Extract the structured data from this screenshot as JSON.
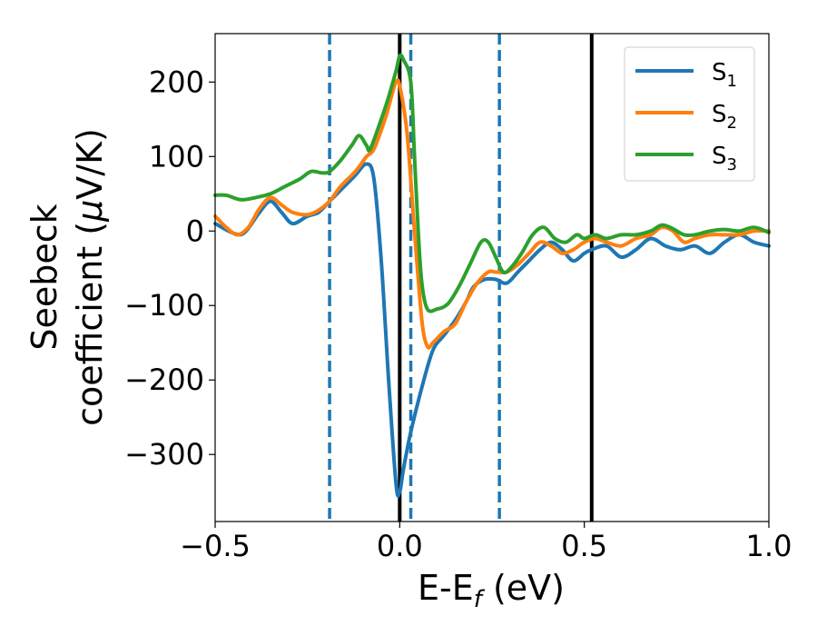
{
  "chart_data": {
    "type": "line",
    "title": "",
    "xlabel": {
      "main": "E-E",
      "sub": "f",
      "unit": " (eV)"
    },
    "ylabel": {
      "line1": "Seebeck",
      "line2_prefix": "coefficient  (",
      "mu": "μ",
      "line2_suffix": "V/K)"
    },
    "xlim": [
      -0.5,
      1.0
    ],
    "ylim": [
      -390,
      265
    ],
    "xticks": [
      -0.5,
      0.0,
      0.5,
      1.0
    ],
    "xtick_labels": [
      "−0.5",
      "0.0",
      "0.5",
      "1.0"
    ],
    "yticks": [
      -300,
      -200,
      -100,
      0,
      100,
      200
    ],
    "ytick_labels": [
      "−300",
      "−200",
      "−100",
      "0",
      "100",
      "200"
    ],
    "grid": false,
    "legend_position": "top-right",
    "vertical_lines": [
      {
        "x": -0.19,
        "style": "dashed",
        "color": "#1f77b4"
      },
      {
        "x": 0.03,
        "style": "dashed",
        "color": "#1f77b4"
      },
      {
        "x": 0.27,
        "style": "dashed",
        "color": "#1f77b4"
      },
      {
        "x": 0.0,
        "style": "solid",
        "color": "#000000"
      },
      {
        "x": 0.52,
        "style": "solid",
        "color": "#000000"
      }
    ],
    "series": [
      {
        "name": "S",
        "sub": "1",
        "color": "#1f77b4",
        "points": [
          [
            -0.5,
            10
          ],
          [
            -0.45,
            -3
          ],
          [
            -0.42,
            -2
          ],
          [
            -0.38,
            25
          ],
          [
            -0.35,
            40
          ],
          [
            -0.32,
            25
          ],
          [
            -0.29,
            10
          ],
          [
            -0.25,
            20
          ],
          [
            -0.22,
            25
          ],
          [
            -0.19,
            40
          ],
          [
            -0.15,
            60
          ],
          [
            -0.12,
            75
          ],
          [
            -0.09,
            90
          ],
          [
            -0.07,
            70
          ],
          [
            -0.05,
            -40
          ],
          [
            -0.03,
            -200
          ],
          [
            -0.01,
            -340
          ],
          [
            0.0,
            -350
          ],
          [
            0.01,
            -320
          ],
          [
            0.03,
            -270
          ],
          [
            0.06,
            -210
          ],
          [
            0.09,
            -160
          ],
          [
            0.12,
            -140
          ],
          [
            0.15,
            -120
          ],
          [
            0.18,
            -95
          ],
          [
            0.2,
            -75
          ],
          [
            0.23,
            -65
          ],
          [
            0.26,
            -65
          ],
          [
            0.29,
            -70
          ],
          [
            0.32,
            -55
          ],
          [
            0.35,
            -40
          ],
          [
            0.38,
            -25
          ],
          [
            0.41,
            -15
          ],
          [
            0.44,
            -25
          ],
          [
            0.47,
            -40
          ],
          [
            0.5,
            -30
          ],
          [
            0.52,
            -25
          ],
          [
            0.56,
            -20
          ],
          [
            0.6,
            -35
          ],
          [
            0.64,
            -25
          ],
          [
            0.68,
            -10
          ],
          [
            0.72,
            -20
          ],
          [
            0.76,
            -25
          ],
          [
            0.8,
            -20
          ],
          [
            0.84,
            -30
          ],
          [
            0.88,
            -15
          ],
          [
            0.92,
            -5
          ],
          [
            0.96,
            -15
          ],
          [
            1.0,
            -20
          ]
        ]
      },
      {
        "name": "S",
        "sub": "2",
        "color": "#ff7f0e",
        "points": [
          [
            -0.5,
            20
          ],
          [
            -0.47,
            5
          ],
          [
            -0.44,
            -5
          ],
          [
            -0.41,
            5
          ],
          [
            -0.38,
            30
          ],
          [
            -0.35,
            45
          ],
          [
            -0.32,
            35
          ],
          [
            -0.29,
            25
          ],
          [
            -0.25,
            22
          ],
          [
            -0.22,
            28
          ],
          [
            -0.19,
            40
          ],
          [
            -0.16,
            60
          ],
          [
            -0.12,
            80
          ],
          [
            -0.09,
            100
          ],
          [
            -0.07,
            110
          ],
          [
            -0.04,
            150
          ],
          [
            -0.02,
            185
          ],
          [
            -0.01,
            200
          ],
          [
            0.0,
            195
          ],
          [
            0.02,
            130
          ],
          [
            0.04,
            0
          ],
          [
            0.06,
            -120
          ],
          [
            0.075,
            -155
          ],
          [
            0.09,
            -150
          ],
          [
            0.12,
            -135
          ],
          [
            0.15,
            -125
          ],
          [
            0.18,
            -95
          ],
          [
            0.21,
            -70
          ],
          [
            0.24,
            -55
          ],
          [
            0.26,
            -55
          ],
          [
            0.29,
            -55
          ],
          [
            0.32,
            -45
          ],
          [
            0.35,
            -30
          ],
          [
            0.38,
            -15
          ],
          [
            0.41,
            -20
          ],
          [
            0.44,
            -30
          ],
          [
            0.47,
            -25
          ],
          [
            0.5,
            -15
          ],
          [
            0.53,
            -10
          ],
          [
            0.56,
            -15
          ],
          [
            0.6,
            -20
          ],
          [
            0.64,
            -10
          ],
          [
            0.68,
            -5
          ],
          [
            0.71,
            5
          ],
          [
            0.74,
            0
          ],
          [
            0.77,
            -15
          ],
          [
            0.8,
            -10
          ],
          [
            0.84,
            -5
          ],
          [
            0.88,
            -5
          ],
          [
            0.92,
            -5
          ],
          [
            0.96,
            0
          ],
          [
            1.0,
            0
          ]
        ]
      },
      {
        "name": "S",
        "sub": "3",
        "color": "#2ca02c",
        "points": [
          [
            -0.5,
            48
          ],
          [
            -0.47,
            48
          ],
          [
            -0.43,
            42
          ],
          [
            -0.39,
            45
          ],
          [
            -0.35,
            50
          ],
          [
            -0.31,
            60
          ],
          [
            -0.27,
            70
          ],
          [
            -0.24,
            80
          ],
          [
            -0.21,
            78
          ],
          [
            -0.19,
            80
          ],
          [
            -0.16,
            95
          ],
          [
            -0.13,
            115
          ],
          [
            -0.11,
            128
          ],
          [
            -0.09,
            115
          ],
          [
            -0.08,
            110
          ],
          [
            -0.05,
            150
          ],
          [
            -0.03,
            180
          ],
          [
            -0.01,
            215
          ],
          [
            0.0,
            235
          ],
          [
            0.01,
            230
          ],
          [
            0.03,
            200
          ],
          [
            0.04,
            100
          ],
          [
            0.05,
            0
          ],
          [
            0.06,
            -70
          ],
          [
            0.075,
            -105
          ],
          [
            0.1,
            -105
          ],
          [
            0.13,
            -98
          ],
          [
            0.16,
            -75
          ],
          [
            0.19,
            -45
          ],
          [
            0.22,
            -15
          ],
          [
            0.24,
            -15
          ],
          [
            0.26,
            -35
          ],
          [
            0.28,
            -55
          ],
          [
            0.3,
            -50
          ],
          [
            0.33,
            -30
          ],
          [
            0.36,
            -5
          ],
          [
            0.39,
            5
          ],
          [
            0.42,
            -10
          ],
          [
            0.45,
            -15
          ],
          [
            0.48,
            -5
          ],
          [
            0.5,
            -10
          ],
          [
            0.53,
            -5
          ],
          [
            0.56,
            -10
          ],
          [
            0.6,
            -5
          ],
          [
            0.64,
            -5
          ],
          [
            0.68,
            0
          ],
          [
            0.71,
            8
          ],
          [
            0.74,
            3
          ],
          [
            0.77,
            -5
          ],
          [
            0.8,
            -5
          ],
          [
            0.84,
            0
          ],
          [
            0.88,
            2
          ],
          [
            0.92,
            0
          ],
          [
            0.96,
            5
          ],
          [
            1.0,
            -2
          ]
        ]
      }
    ]
  }
}
